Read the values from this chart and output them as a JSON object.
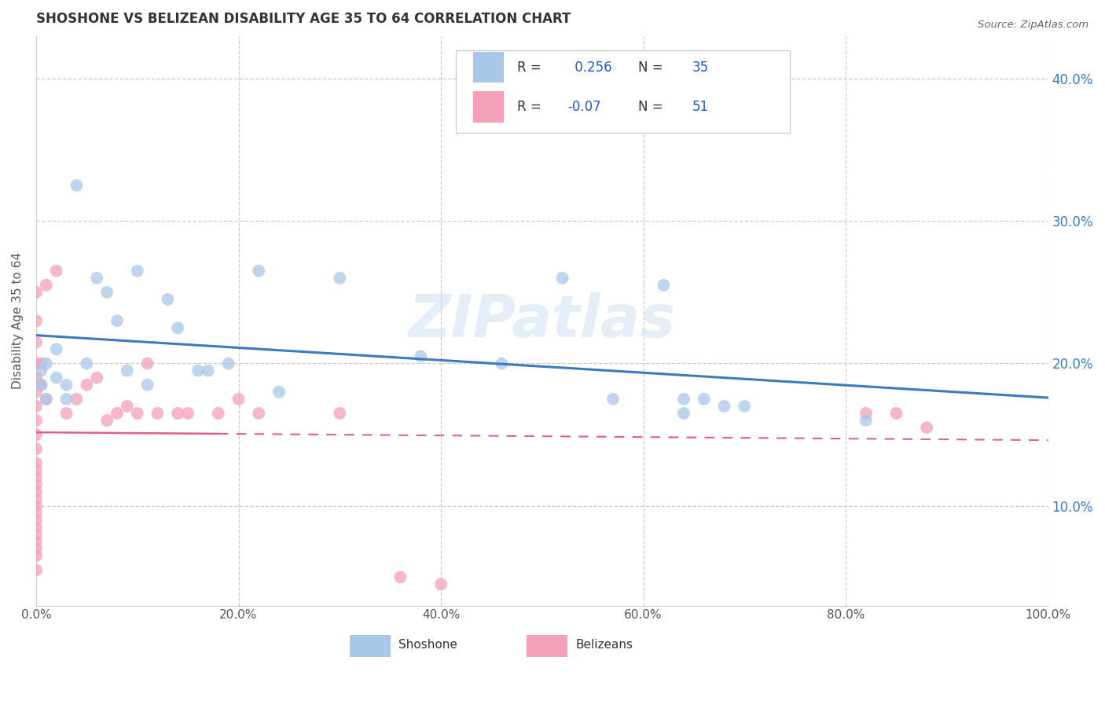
{
  "title": "SHOSHONE VS BELIZEAN DISABILITY AGE 35 TO 64 CORRELATION CHART",
  "source_text": "Source: ZipAtlas.com",
  "ylabel": "Disability Age 35 to 64",
  "xlim": [
    0.0,
    1.0
  ],
  "ylim": [
    0.03,
    0.43
  ],
  "xticks": [
    0.0,
    0.2,
    0.4,
    0.6,
    0.8,
    1.0
  ],
  "yticks": [
    0.1,
    0.2,
    0.3,
    0.4
  ],
  "shoshone_R": 0.256,
  "shoshone_N": 35,
  "belizean_R": -0.07,
  "belizean_N": 51,
  "shoshone_color": "#a8c8e8",
  "belizean_color": "#f4a0b8",
  "shoshone_line_color": "#3a7abf",
  "belizean_line_color": "#e06080",
  "watermark": "ZIPatlas",
  "sho_x": [
    0.005,
    0.005,
    0.01,
    0.01,
    0.02,
    0.02,
    0.03,
    0.03,
    0.04,
    0.05,
    0.06,
    0.07,
    0.08,
    0.09,
    0.1,
    0.11,
    0.13,
    0.14,
    0.16,
    0.17,
    0.19,
    0.22,
    0.24,
    0.3,
    0.38,
    0.46,
    0.52,
    0.57,
    0.62,
    0.64,
    0.64,
    0.66,
    0.68,
    0.7,
    0.82
  ],
  "sho_y": [
    0.195,
    0.185,
    0.2,
    0.175,
    0.21,
    0.19,
    0.185,
    0.175,
    0.325,
    0.2,
    0.26,
    0.25,
    0.23,
    0.195,
    0.265,
    0.185,
    0.245,
    0.225,
    0.195,
    0.195,
    0.2,
    0.265,
    0.18,
    0.26,
    0.205,
    0.2,
    0.26,
    0.175,
    0.255,
    0.175,
    0.165,
    0.175,
    0.17,
    0.17,
    0.16
  ],
  "bel_x": [
    0.0,
    0.0,
    0.0,
    0.0,
    0.0,
    0.0,
    0.0,
    0.0,
    0.0,
    0.0,
    0.0,
    0.0,
    0.0,
    0.0,
    0.0,
    0.0,
    0.0,
    0.0,
    0.0,
    0.0,
    0.0,
    0.0,
    0.0,
    0.0,
    0.0,
    0.005,
    0.005,
    0.01,
    0.01,
    0.02,
    0.03,
    0.04,
    0.05,
    0.06,
    0.07,
    0.08,
    0.09,
    0.1,
    0.11,
    0.12,
    0.14,
    0.15,
    0.18,
    0.2,
    0.22,
    0.3,
    0.36,
    0.4,
    0.82,
    0.85,
    0.88
  ],
  "bel_y": [
    0.055,
    0.065,
    0.07,
    0.075,
    0.08,
    0.085,
    0.09,
    0.095,
    0.1,
    0.105,
    0.11,
    0.115,
    0.12,
    0.125,
    0.13,
    0.14,
    0.15,
    0.16,
    0.17,
    0.18,
    0.19,
    0.2,
    0.215,
    0.23,
    0.25,
    0.185,
    0.2,
    0.175,
    0.255,
    0.265,
    0.165,
    0.175,
    0.185,
    0.19,
    0.16,
    0.165,
    0.17,
    0.165,
    0.2,
    0.165,
    0.165,
    0.165,
    0.165,
    0.175,
    0.165,
    0.165,
    0.05,
    0.045,
    0.165,
    0.165,
    0.155
  ]
}
